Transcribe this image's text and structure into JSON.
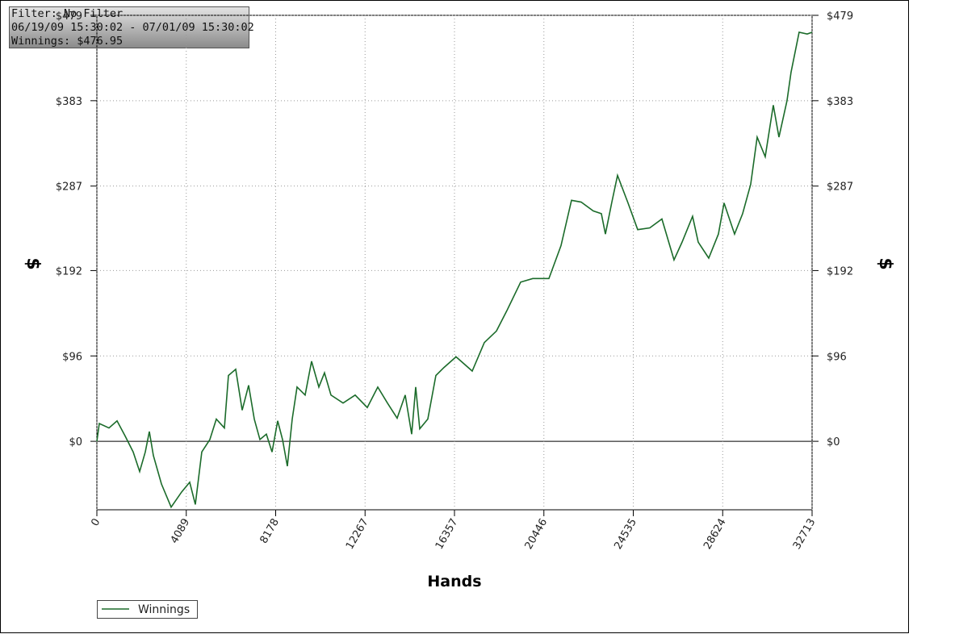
{
  "info": {
    "filter": "Filter: No Filter",
    "period": "06/19/09 15:30:02 - 07/01/09 15:30:02",
    "winnings": "Winnings: $476.95"
  },
  "chart_data": {
    "type": "line",
    "x_label": "Hands",
    "y_label": "$",
    "y2_label": "$",
    "xlim": [
      0,
      32713
    ],
    "xticks": [
      0,
      4089,
      8178,
      12267,
      16357,
      20446,
      24535,
      28624,
      32713
    ],
    "ylim": [
      -77,
      479
    ],
    "yticks": [
      {
        "value": 0,
        "label": "$0"
      },
      {
        "value": 96,
        "label": "$96"
      },
      {
        "value": 192,
        "label": "$192"
      },
      {
        "value": 287,
        "label": "$287"
      },
      {
        "value": 383,
        "label": "$383"
      },
      {
        "value": 479,
        "label": "$479"
      }
    ],
    "grid": true,
    "legend": "bottom-left",
    "series": [
      {
        "name": "Winnings",
        "color": "#1b6b2a",
        "x": [
          0,
          111,
          554,
          923,
          1292,
          1661,
          1957,
          2215,
          2400,
          2584,
          2954,
          3397,
          3876,
          4246,
          4504,
          4799,
          5168,
          5464,
          5833,
          6018,
          6350,
          6646,
          6941,
          7200,
          7458,
          7753,
          8012,
          8270,
          8492,
          8713,
          8935,
          9156,
          9525,
          9820,
          10153,
          10411,
          10707,
          11261,
          11814,
          12368,
          12848,
          13291,
          13734,
          14103,
          14399,
          14583,
          14768,
          15137,
          15506,
          15876,
          16429,
          17168,
          17722,
          18275,
          18755,
          19383,
          19937,
          20675,
          21229,
          21709,
          22152,
          22706,
          23075,
          23260,
          23555,
          23814,
          24294,
          24737,
          25290,
          25844,
          26398,
          26767,
          27247,
          27505,
          27986,
          28428,
          28687,
          29167,
          29536,
          29905,
          30201,
          30570,
          30939,
          31197,
          31566,
          31751,
          32120,
          32490,
          32713
        ],
        "values": [
          0,
          20,
          15,
          23,
          6,
          -12,
          -34,
          -12,
          11,
          -16,
          -48,
          -74,
          -57,
          -46,
          -71,
          -12,
          2,
          25,
          15,
          74,
          81,
          35,
          63,
          25,
          2,
          8,
          -12,
          23,
          2,
          -28,
          25,
          61,
          52,
          90,
          61,
          77,
          52,
          43,
          52,
          38,
          61,
          43,
          26,
          52,
          8,
          61,
          14,
          25,
          74,
          83,
          95,
          79,
          111,
          124,
          147,
          179,
          183,
          183,
          220,
          271,
          269,
          259,
          256,
          233,
          269,
          299,
          268,
          238,
          240,
          250,
          204,
          224,
          253,
          224,
          206,
          233,
          268,
          233,
          256,
          289,
          342,
          320,
          378,
          342,
          383,
          415,
          460,
          458,
          460
        ]
      }
    ]
  }
}
